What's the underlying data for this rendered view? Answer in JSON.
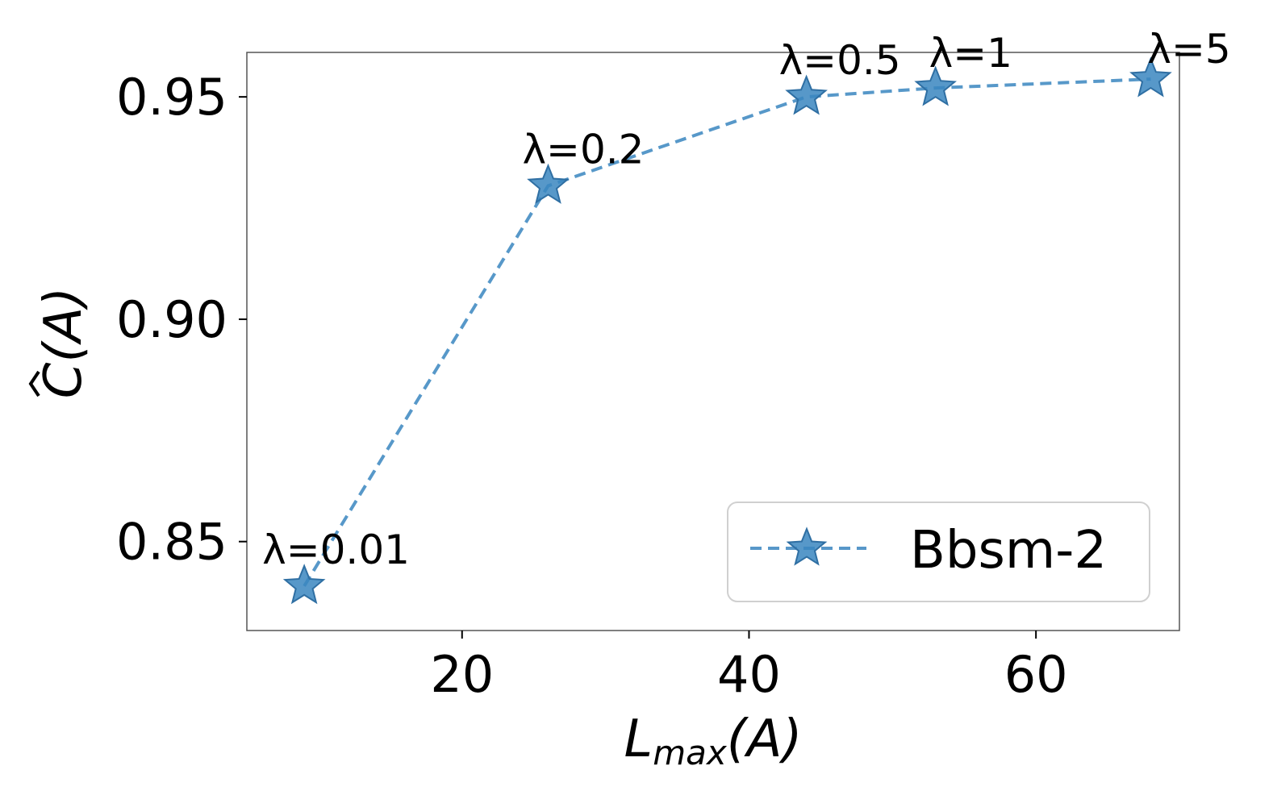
{
  "chart_data": {
    "type": "line",
    "x": [
      9,
      26,
      44,
      53,
      68
    ],
    "series": [
      {
        "name": "Bbsm-2",
        "values": [
          0.84,
          0.93,
          0.95,
          0.952,
          0.954
        ],
        "color": "#3a86c0",
        "marker": "star",
        "linestyle": "dashed"
      }
    ],
    "annotations": [
      "λ=0.01",
      "λ=0.2",
      "λ=0.5",
      "λ=1",
      "λ=5"
    ],
    "xlim": [
      5,
      70
    ],
    "ylim": [
      0.83,
      0.96
    ],
    "xticks": [
      20,
      40,
      60
    ],
    "xtick_labels": [
      "20",
      "40",
      "60"
    ],
    "yticks": [
      0.85,
      0.9,
      0.95
    ],
    "ytick_labels": [
      "0.85",
      "0.90",
      "0.95"
    ],
    "xlabel": "L_max(A)",
    "ylabel": "Ĉ(A)",
    "grid": false,
    "legend_position": "lower-right"
  }
}
